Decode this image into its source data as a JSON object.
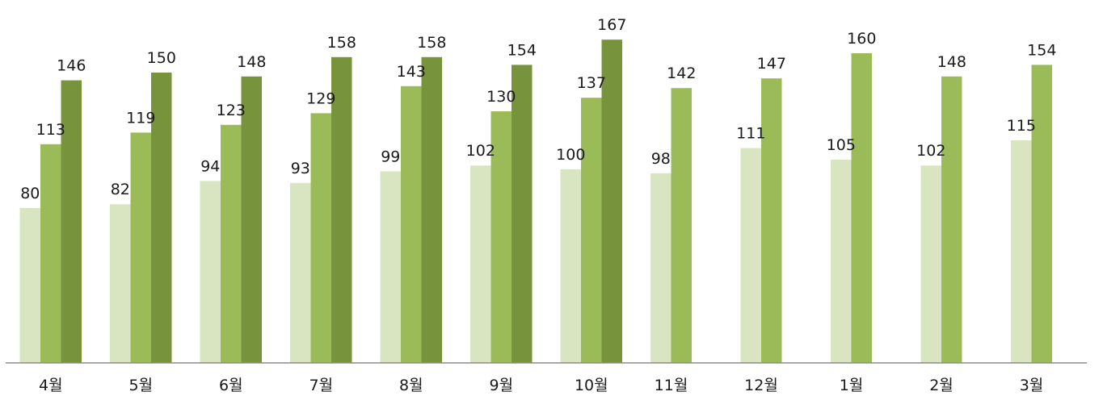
{
  "chart_data": {
    "type": "bar",
    "categories": [
      "4월",
      "5월",
      "6월",
      "7월",
      "8월",
      "9월",
      "10월",
      "11월",
      "12월",
      "1월",
      "2월",
      "3월"
    ],
    "series": [
      {
        "values": [
          80,
          82,
          94,
          93,
          99,
          102,
          100,
          98,
          111,
          105,
          102,
          115
        ],
        "color": "#d9e5c0"
      },
      {
        "values": [
          113,
          119,
          123,
          129,
          143,
          130,
          137,
          142,
          147,
          160,
          148,
          154
        ],
        "color": "#9bbb59"
      },
      {
        "values": [
          146,
          150,
          148,
          158,
          158,
          154,
          167,
          null,
          null,
          null,
          null,
          null
        ],
        "color": "#77933c"
      }
    ],
    "ylim": [
      0,
      175
    ],
    "grid": false,
    "legend": "none",
    "axis_color": "#8c8c8c"
  }
}
